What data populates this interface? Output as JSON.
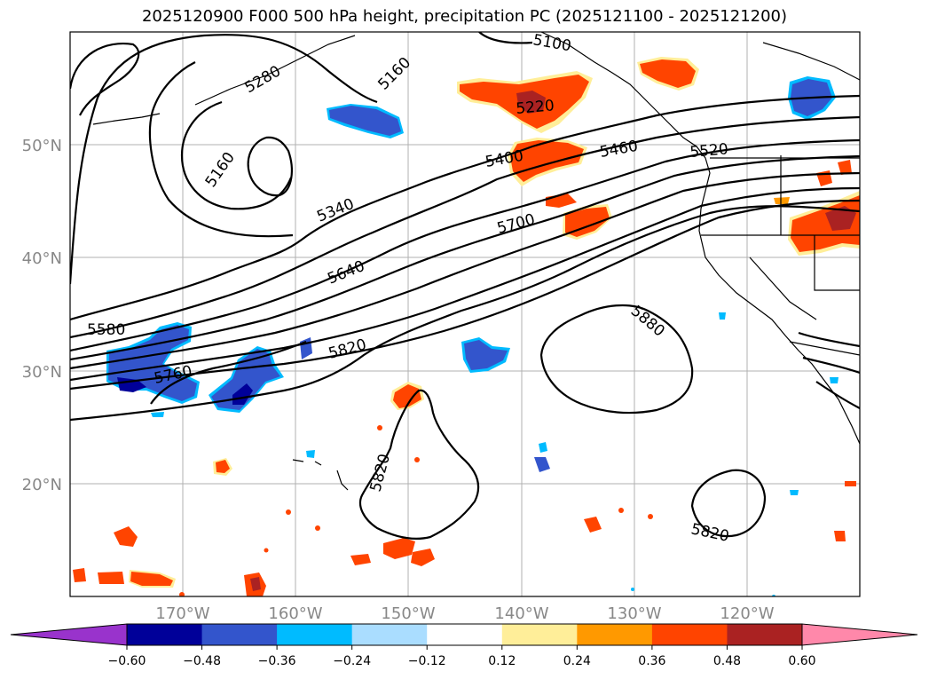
{
  "title": "2025120900 F000 500 hPa height, precipitation PC (2025121100 - 2025121200)",
  "lat_labels": [
    "50°N",
    "40°N",
    "30°N",
    "20°N"
  ],
  "lon_labels": [
    "170°W",
    "160°W",
    "150°W",
    "140°W",
    "130°W",
    "120°W"
  ],
  "contour_labels": [
    "5280",
    "5160",
    "5100",
    "5160",
    "5220",
    "5400",
    "5460",
    "5520",
    "5340",
    "5700",
    "5640",
    "5580",
    "5820",
    "5760",
    "5880",
    "5820",
    "5820"
  ],
  "colorbar": {
    "tick_labels": [
      "−0.60",
      "−0.48",
      "−0.36",
      "−0.24",
      "−0.12",
      "0.12",
      "0.24",
      "0.36",
      "0.48",
      "0.60"
    ],
    "colors": [
      "#9933cc",
      "#000099",
      "#3355cc",
      "#00bbff",
      "#aaddff",
      "#ffffff",
      "#ffee99",
      "#ff9900",
      "#ff4400",
      "#aa2222",
      "#ff88aa"
    ]
  }
}
